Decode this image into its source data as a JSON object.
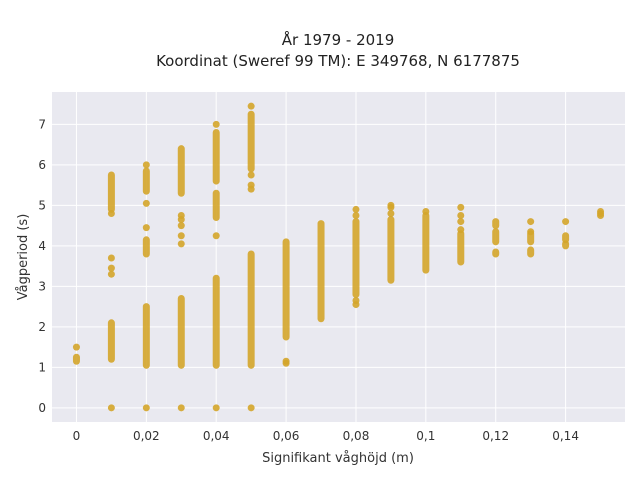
{
  "chart_data": {
    "type": "scatter",
    "title_line1": "År 1979 - 2019",
    "title_line2": "Koordinat (Sweref 99 TM): E 349768, N 6177875",
    "xlabel": "Signifikant våghöjd (m)",
    "ylabel": "Vågperiod (s)",
    "xlim": [
      -0.007,
      0.157
    ],
    "ylim": [
      -0.35,
      7.8
    ],
    "x_ticks": [
      0,
      0.02,
      0.04,
      0.06,
      0.08,
      0.1,
      0.12,
      0.14
    ],
    "x_tick_labels": [
      "0",
      "0,02",
      "0,04",
      "0,06",
      "0,08",
      "0,1",
      "0,12",
      "0,14"
    ],
    "y_ticks": [
      0,
      1,
      2,
      3,
      4,
      5,
      6,
      7
    ],
    "y_tick_labels": [
      "0",
      "1",
      "2",
      "3",
      "4",
      "5",
      "6",
      "7"
    ],
    "grid": true,
    "plot_background": "#e9e9f0",
    "grid_color": "#ffffff",
    "marker_color": "#d4a52a",
    "point_groups": [
      {
        "x": 0,
        "segments": [
          [
            1.15,
            1.25
          ]
        ],
        "points": [
          1.5
        ]
      },
      {
        "x": 0.01,
        "segments": [
          [
            1.2,
            2.1
          ],
          [
            4.9,
            5.75
          ]
        ],
        "points": [
          0,
          3.3,
          3.45,
          3.7,
          4.8
        ]
      },
      {
        "x": 0.02,
        "segments": [
          [
            1.05,
            2.5
          ],
          [
            3.8,
            4.15
          ],
          [
            5.35,
            5.85
          ]
        ],
        "points": [
          0,
          4.45,
          5.05,
          6.0
        ]
      },
      {
        "x": 0.03,
        "segments": [
          [
            1.05,
            2.7
          ],
          [
            5.3,
            6.4
          ]
        ],
        "points": [
          0,
          4.05,
          4.25,
          4.5,
          4.65,
          4.75
        ]
      },
      {
        "x": 0.04,
        "segments": [
          [
            1.05,
            3.2
          ],
          [
            4.7,
            5.3
          ],
          [
            5.6,
            6.8
          ]
        ],
        "points": [
          0,
          4.25,
          7.0
        ]
      },
      {
        "x": 0.05,
        "segments": [
          [
            1.05,
            3.8
          ],
          [
            5.9,
            7.25
          ]
        ],
        "points": [
          0,
          5.4,
          5.5,
          5.75,
          7.45
        ]
      },
      {
        "x": 0.06,
        "segments": [
          [
            1.75,
            4.1
          ]
        ],
        "points": [
          1.1,
          1.15
        ]
      },
      {
        "x": 0.07,
        "segments": [
          [
            2.2,
            4.55
          ]
        ],
        "points": []
      },
      {
        "x": 0.08,
        "segments": [
          [
            2.8,
            4.6
          ]
        ],
        "points": [
          2.55,
          2.65,
          4.75,
          4.9
        ]
      },
      {
        "x": 0.09,
        "segments": [
          [
            3.15,
            4.65
          ]
        ],
        "points": [
          4.8,
          4.95,
          5.0
        ]
      },
      {
        "x": 0.1,
        "segments": [
          [
            3.4,
            4.75
          ]
        ],
        "points": [
          4.85
        ]
      },
      {
        "x": 0.11,
        "segments": [
          [
            3.6,
            4.3
          ]
        ],
        "points": [
          4.4,
          4.6,
          4.75,
          4.95
        ]
      },
      {
        "x": 0.12,
        "segments": [
          [
            3.8,
            3.85
          ],
          [
            4.1,
            4.35
          ],
          [
            4.5,
            4.6
          ]
        ],
        "points": []
      },
      {
        "x": 0.13,
        "segments": [
          [
            3.8,
            3.9
          ],
          [
            4.1,
            4.3
          ]
        ],
        "points": [
          4.35,
          4.6
        ]
      },
      {
        "x": 0.14,
        "segments": [
          [
            4.0,
            4.05
          ],
          [
            4.15,
            4.25
          ]
        ],
        "points": [
          4.6
        ]
      },
      {
        "x": 0.15,
        "segments": [],
        "points": [
          4.75,
          4.8,
          4.85
        ]
      }
    ]
  }
}
